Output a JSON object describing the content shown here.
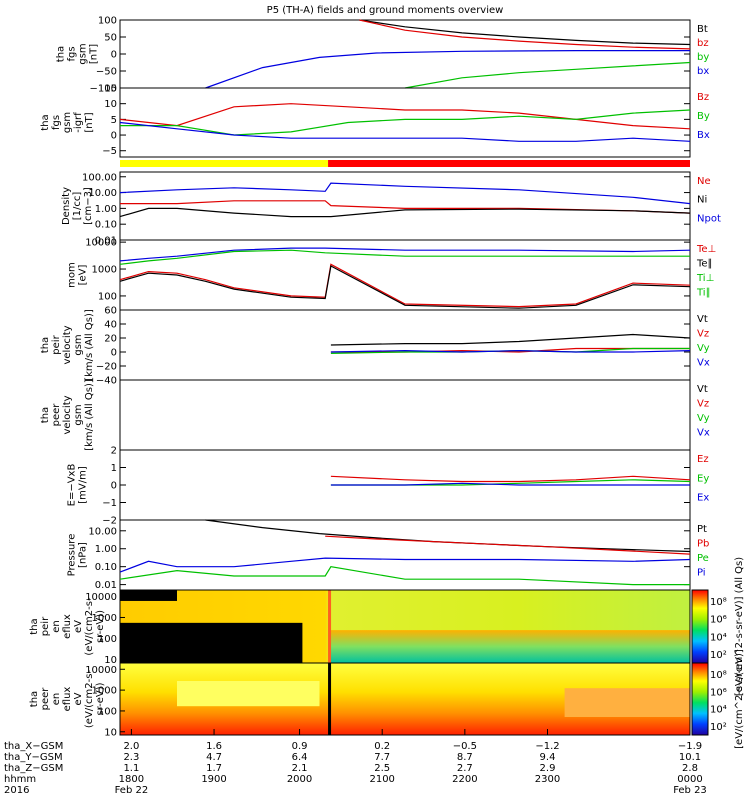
{
  "title": "P5 (TH-A) fields and ground moments overview",
  "chart_data": [
    {
      "type": "line",
      "ylabel": [
        "tha",
        "fgs",
        "gsm",
        "[nT]"
      ],
      "ylim": [
        -100,
        100
      ],
      "yticks": [
        "100",
        "50",
        "0",
        "−50",
        "−100"
      ],
      "ytick_values": [
        100,
        50,
        0,
        -50,
        -100
      ],
      "legend": [
        {
          "name": "Bt",
          "color": "#000000"
        },
        {
          "name": "bz",
          "color": "#e00000"
        },
        {
          "name": "by",
          "color": "#00c000"
        },
        {
          "name": "bx",
          "color": "#0000e0"
        }
      ],
      "series": [
        {
          "name": "Bt",
          "color": "#000000",
          "x": [
            0.42,
            0.5,
            0.6,
            0.7,
            0.8,
            0.9,
            1.0
          ],
          "y": [
            100,
            80,
            62,
            50,
            40,
            32,
            28
          ]
        },
        {
          "name": "bz",
          "color": "#e00000",
          "x": [
            0.42,
            0.5,
            0.6,
            0.7,
            0.8,
            0.9,
            1.0
          ],
          "y": [
            100,
            70,
            50,
            38,
            28,
            20,
            15
          ]
        },
        {
          "name": "by",
          "color": "#00c000",
          "x": [
            0.5,
            0.6,
            0.7,
            0.8,
            0.9,
            1.0
          ],
          "y": [
            -100,
            -70,
            -55,
            -45,
            -35,
            -25
          ]
        },
        {
          "name": "bx",
          "color": "#0000e0",
          "x": [
            0.15,
            0.25,
            0.35,
            0.45,
            0.6,
            0.8,
            1.0
          ],
          "y": [
            -100,
            -40,
            -10,
            3,
            8,
            10,
            10
          ]
        }
      ]
    },
    {
      "type": "line",
      "ylabel": [
        "tha",
        "fgs",
        "gsm",
        "-igrf",
        "[nT]"
      ],
      "ylim": [
        -7,
        15
      ],
      "yticks": [
        "15",
        "10",
        "5",
        "0",
        "−5"
      ],
      "ytick_values": [
        15,
        10,
        5,
        0,
        -5
      ],
      "legend": [
        {
          "name": "Bz",
          "color": "#e00000"
        },
        {
          "name": "By",
          "color": "#00c000"
        },
        {
          "name": "Bx",
          "color": "#0000e0"
        }
      ],
      "series": [
        {
          "name": "Bz",
          "color": "#e00000",
          "x": [
            0,
            0.1,
            0.2,
            0.3,
            0.4,
            0.5,
            0.6,
            0.7,
            0.8,
            0.9,
            1.0
          ],
          "y": [
            5,
            3,
            9,
            10,
            9,
            8,
            8,
            7,
            5,
            3,
            2
          ]
        },
        {
          "name": "By",
          "color": "#00c000",
          "x": [
            0,
            0.1,
            0.2,
            0.3,
            0.4,
            0.5,
            0.6,
            0.7,
            0.8,
            0.9,
            1.0
          ],
          "y": [
            3,
            3,
            0,
            1,
            4,
            5,
            5,
            6,
            5,
            7,
            8
          ]
        },
        {
          "name": "Bx",
          "color": "#0000e0",
          "x": [
            0,
            0.1,
            0.2,
            0.3,
            0.4,
            0.5,
            0.6,
            0.7,
            0.8,
            0.9,
            1.0
          ],
          "y": [
            4,
            2,
            0,
            -1,
            -1,
            -1,
            -1,
            -2,
            -2,
            -1,
            -2
          ]
        }
      ]
    },
    {
      "type": "bar",
      "name": "mode-bar",
      "segments": [
        {
          "from": 0.0,
          "to": 0.365,
          "color": "#ffff00"
        },
        {
          "from": 0.365,
          "to": 1.0,
          "color": "#ff0000"
        }
      ]
    },
    {
      "type": "line",
      "scale": "log",
      "ylabel": [
        "Density",
        "[1/cc]",
        "[cm−3]"
      ],
      "ylim": [
        0.01,
        200
      ],
      "yticks": [
        "100.00",
        "10.00",
        "1.00",
        "0.10",
        "0.01"
      ],
      "ytick_values": [
        100,
        10,
        1,
        0.1,
        0.01
      ],
      "legend": [
        {
          "name": "Ne",
          "color": "#e00000"
        },
        {
          "name": "Ni",
          "color": "#000000"
        },
        {
          "name": "Npot",
          "color": "#0000e0"
        }
      ],
      "series": [
        {
          "name": "Ne",
          "color": "#e00000",
          "x": [
            0,
            0.1,
            0.2,
            0.3,
            0.36,
            0.37,
            0.5,
            0.7,
            0.9,
            1.0
          ],
          "y": [
            2,
            2,
            3,
            3,
            3,
            1.5,
            1,
            1,
            0.7,
            0.5
          ]
        },
        {
          "name": "Ni",
          "color": "#000000",
          "x": [
            0,
            0.05,
            0.1,
            0.2,
            0.3,
            0.36,
            0.37,
            0.5,
            0.7,
            0.9,
            1.0
          ],
          "y": [
            0.3,
            1,
            1,
            0.5,
            0.3,
            0.3,
            0.3,
            0.8,
            0.9,
            0.7,
            0.5
          ]
        },
        {
          "name": "Npot",
          "color": "#0000e0",
          "x": [
            0,
            0.1,
            0.2,
            0.3,
            0.36,
            0.37,
            0.5,
            0.7,
            0.9,
            1.0
          ],
          "y": [
            10,
            15,
            20,
            15,
            12,
            40,
            25,
            15,
            5,
            2
          ]
        }
      ]
    },
    {
      "type": "line",
      "scale": "log",
      "ylabel": [
        "mom",
        "[eV]"
      ],
      "ylim": [
        30,
        12000
      ],
      "yticks": [
        "10000",
        "1000",
        "100"
      ],
      "ytick_values": [
        10000,
        1000,
        100
      ],
      "legend": [
        {
          "name": "Te⊥",
          "color": "#e00000"
        },
        {
          "name": "Te∥",
          "color": "#000000"
        },
        {
          "name": "Ti⊥",
          "color": "#00c000"
        },
        {
          "name": "Ti∥",
          "color": "#00c000"
        }
      ],
      "series": [
        {
          "name": "Te⊥",
          "color": "#e00000",
          "x": [
            0,
            0.05,
            0.1,
            0.15,
            0.2,
            0.3,
            0.36,
            0.37,
            0.5,
            0.7,
            0.8,
            0.9,
            1.0
          ],
          "y": [
            400,
            800,
            700,
            400,
            200,
            100,
            90,
            1500,
            50,
            40,
            50,
            300,
            250
          ]
        },
        {
          "name": "Te∥",
          "color": "#000000",
          "x": [
            0,
            0.05,
            0.1,
            0.15,
            0.2,
            0.3,
            0.36,
            0.37,
            0.5,
            0.7,
            0.8,
            0.9,
            1.0
          ],
          "y": [
            350,
            700,
            600,
            350,
            180,
            90,
            80,
            1300,
            45,
            35,
            45,
            260,
            220
          ]
        },
        {
          "name": "Ti⊥",
          "color": "#0000e0",
          "x": [
            0,
            0.05,
            0.1,
            0.2,
            0.3,
            0.36,
            0.5,
            0.7,
            0.9,
            1.0
          ],
          "y": [
            2000,
            2500,
            3000,
            5000,
            6000,
            6000,
            5000,
            5000,
            4500,
            5000
          ]
        },
        {
          "name": "Ti∥",
          "color": "#00c000",
          "x": [
            0,
            0.05,
            0.1,
            0.2,
            0.3,
            0.36,
            0.5,
            0.7,
            0.9,
            1.0
          ],
          "y": [
            1500,
            2000,
            2500,
            4500,
            5000,
            4000,
            3000,
            3000,
            3000,
            3000
          ]
        }
      ]
    },
    {
      "type": "line",
      "ylabel": [
        "tha",
        "peir",
        "velocity",
        "gsm",
        "[km/s (All Qs)]"
      ],
      "ylim": [
        -40,
        60
      ],
      "yticks": [
        "60",
        "40",
        "20",
        "0",
        "−20",
        "−40"
      ],
      "ytick_values": [
        60,
        40,
        20,
        0,
        -20,
        -40
      ],
      "legend": [
        {
          "name": "Vt",
          "color": "#000000"
        },
        {
          "name": "Vz",
          "color": "#e00000"
        },
        {
          "name": "Vy",
          "color": "#00c000"
        },
        {
          "name": "Vx",
          "color": "#0000e0"
        }
      ],
      "series": [
        {
          "name": "Vt",
          "color": "#000000",
          "x": [
            0.37,
            0.5,
            0.6,
            0.7,
            0.8,
            0.9,
            1.0
          ],
          "y": [
            10,
            12,
            12,
            15,
            20,
            25,
            20
          ]
        },
        {
          "name": "Vz",
          "color": "#e00000",
          "x": [
            0.37,
            0.5,
            0.6,
            0.7,
            0.8,
            0.9,
            1.0
          ],
          "y": [
            0,
            0,
            2,
            0,
            5,
            5,
            5
          ]
        },
        {
          "name": "Vy",
          "color": "#00c000",
          "x": [
            0.37,
            0.5,
            0.6,
            0.7,
            0.8,
            0.9,
            1.0
          ],
          "y": [
            -2,
            0,
            0,
            2,
            0,
            5,
            5
          ]
        },
        {
          "name": "Vx",
          "color": "#0000e0",
          "x": [
            0.37,
            0.5,
            0.6,
            0.7,
            0.8,
            0.9,
            1.0
          ],
          "y": [
            0,
            2,
            0,
            2,
            0,
            0,
            2
          ]
        }
      ]
    },
    {
      "type": "line",
      "ylabel": [
        "tha",
        "peer",
        "velocity",
        "gsm",
        "[km/s (All Qs)]"
      ],
      "ylim": [
        -40,
        60
      ],
      "yticks": [],
      "ytick_values": [],
      "legend": [
        {
          "name": "Vt",
          "color": "#000000"
        },
        {
          "name": "Vz",
          "color": "#e00000"
        },
        {
          "name": "Vy",
          "color": "#00c000"
        },
        {
          "name": "Vx",
          "color": "#0000e0"
        }
      ],
      "series": []
    },
    {
      "type": "line",
      "ylabel": [
        "E=−VxB",
        "[mV/m]"
      ],
      "ylim": [
        -2,
        2
      ],
      "yticks": [
        "2",
        "1",
        "0",
        "−1",
        "−2"
      ],
      "ytick_values": [
        2,
        1,
        0,
        -1,
        -2
      ],
      "legend": [
        {
          "name": "Ez",
          "color": "#e00000"
        },
        {
          "name": "Ey",
          "color": "#00c000"
        },
        {
          "name": "Ex",
          "color": "#0000e0"
        }
      ],
      "series": [
        {
          "name": "Ez",
          "color": "#e00000",
          "x": [
            0.37,
            0.5,
            0.6,
            0.7,
            0.8,
            0.9,
            1.0
          ],
          "y": [
            0.5,
            0.3,
            0.2,
            0.2,
            0.3,
            0.5,
            0.3
          ]
        },
        {
          "name": "Ey",
          "color": "#00c000",
          "x": [
            0.37,
            0.5,
            0.6,
            0.7,
            0.8,
            0.9,
            1.0
          ],
          "y": [
            0,
            0,
            0,
            0.1,
            0.2,
            0.3,
            0.2
          ]
        },
        {
          "name": "Ex",
          "color": "#0000e0",
          "x": [
            0.37,
            0.5,
            0.6,
            0.7,
            0.8,
            0.9,
            1.0
          ],
          "y": [
            0,
            0,
            0.1,
            0,
            0,
            0,
            0
          ]
        }
      ]
    },
    {
      "type": "line",
      "scale": "log",
      "ylabel": [
        "Pressure",
        "[nPa]"
      ],
      "ylim": [
        0.005,
        40
      ],
      "yticks": [
        "10.00",
        "1.00",
        "0.10",
        "0.01"
      ],
      "ytick_values": [
        10,
        1,
        0.1,
        0.01
      ],
      "legend": [
        {
          "name": "Pt",
          "color": "#000000"
        },
        {
          "name": "Pb",
          "color": "#e00000"
        },
        {
          "name": "Pe",
          "color": "#00c000"
        },
        {
          "name": "Pi",
          "color": "#0000e0"
        }
      ],
      "series": [
        {
          "name": "Pt",
          "color": "#000000",
          "x": [
            0.15,
            0.25,
            0.35,
            0.45,
            0.55,
            0.65,
            0.75,
            0.85,
            1.0
          ],
          "y": [
            40,
            15,
            7,
            4,
            2.5,
            1.8,
            1.3,
            1,
            0.7
          ]
        },
        {
          "name": "Pb",
          "color": "#e00000",
          "x": [
            0.36,
            0.45,
            0.55,
            0.65,
            0.75,
            0.85,
            1.0
          ],
          "y": [
            5,
            3.5,
            2.5,
            1.8,
            1.3,
            0.9,
            0.5
          ]
        },
        {
          "name": "Pe",
          "color": "#00c000",
          "x": [
            0,
            0.1,
            0.2,
            0.3,
            0.36,
            0.37,
            0.5,
            0.7,
            0.9,
            1.0
          ],
          "y": [
            0.02,
            0.06,
            0.03,
            0.03,
            0.03,
            0.1,
            0.02,
            0.02,
            0.01,
            0.01
          ]
        },
        {
          "name": "Pi",
          "color": "#0000e0",
          "x": [
            0,
            0.05,
            0.1,
            0.2,
            0.3,
            0.36,
            0.5,
            0.7,
            0.9,
            1.0
          ],
          "y": [
            0.05,
            0.2,
            0.1,
            0.1,
            0.2,
            0.3,
            0.25,
            0.25,
            0.2,
            0.25
          ]
        }
      ]
    },
    {
      "type": "heatmap",
      "ylabel": [
        "tha",
        "peir",
        "en",
        "eflux",
        "eV",
        "(eV/(cm2-s-",
        "sr-eV))"
      ],
      "yticks": [
        "10000",
        "1000",
        "100",
        "10"
      ],
      "ytick_values": [
        10000,
        1000,
        100,
        10
      ],
      "colorbar_label": "[eV/(cm^2-s-sr-eV)] (All Qs)",
      "colorbar_ticks": [
        "10⁸",
        "10⁶",
        "10⁴",
        "10²"
      ]
    },
    {
      "type": "heatmap",
      "ylabel": [
        "tha",
        "peer",
        "en",
        "eflux",
        "eV",
        "(eV/(cm2-s-",
        "sr-eV))"
      ],
      "yticks": [
        "10000",
        "1000",
        "100",
        "10"
      ],
      "ytick_values": [
        10000,
        1000,
        100,
        10
      ],
      "colorbar_label": "[eV/(cm^2-s-sr-eV)]",
      "colorbar_ticks": [
        "10⁸",
        "10⁶",
        "10⁴",
        "10²"
      ]
    }
  ],
  "xaxis": {
    "rows": [
      {
        "label": "tha_X−GSM",
        "values": [
          "2.0",
          "1.6",
          "0.9",
          "0.2",
          "−0.5",
          "−1.2",
          "−1.9"
        ]
      },
      {
        "label": "tha_Y−GSM",
        "values": [
          "2.3",
          "4.7",
          "6.4",
          "7.7",
          "8.7",
          "9.4",
          "10.1"
        ]
      },
      {
        "label": "tha_Z−GSM",
        "values": [
          "1.1",
          "1.7",
          "2.1",
          "2.5",
          "2.7",
          "2.9",
          "2.8"
        ]
      },
      {
        "label": "hhmm",
        "values": [
          "1800",
          "1900",
          "2000",
          "2100",
          "2200",
          "2300",
          "0000"
        ]
      },
      {
        "label": "2016",
        "values": [
          "Feb 22",
          "",
          "",
          "",
          "",
          "",
          "Feb 23"
        ]
      }
    ]
  }
}
